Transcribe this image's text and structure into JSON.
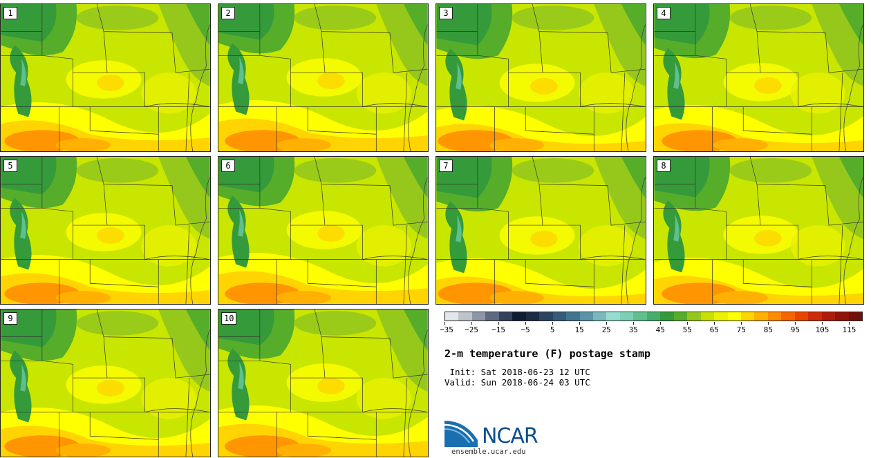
{
  "panels": [
    {
      "id": "1",
      "tone": "a"
    },
    {
      "id": "2",
      "tone": "b"
    },
    {
      "id": "3",
      "tone": "c"
    },
    {
      "id": "4",
      "tone": "d"
    },
    {
      "id": "5",
      "tone": "a"
    },
    {
      "id": "6",
      "tone": "b"
    },
    {
      "id": "7",
      "tone": "c"
    },
    {
      "id": "8",
      "tone": "d"
    },
    {
      "id": "9",
      "tone": "a"
    },
    {
      "id": "10",
      "tone": "b"
    }
  ],
  "legend": {
    "ticks": [
      "−35",
      "−25",
      "−15",
      "−5",
      "5",
      "15",
      "25",
      "35",
      "45",
      "55",
      "65",
      "75",
      "85",
      "95",
      "105",
      "115"
    ],
    "colors": [
      "#e3e6ea",
      "#bfc4cc",
      "#8f97a6",
      "#5f6a80",
      "#33405a",
      "#101c33",
      "#1a2c44",
      "#2a4460",
      "#345b78",
      "#3f7590",
      "#5a94a8",
      "#7ab8bc",
      "#95dcd0",
      "#7ed0b4",
      "#5fbf8e",
      "#46ad6a",
      "#359a3a",
      "#55ad2a",
      "#96c81c",
      "#c7e000",
      "#e9f200",
      "#ffff00",
      "#ffd400",
      "#ffb000",
      "#ff8a00",
      "#f86400",
      "#e84400",
      "#cc2a08",
      "#b01a0c",
      "#901208",
      "#701008"
    ]
  },
  "title": "2-m temperature (F) postage stamp",
  "init": " Init: Sat 2018-06-23 12 UTC",
  "valid": "Valid: Sun 2018-06-24 03 UTC",
  "logo_text": "NCAR",
  "site": "ensemble.ucar.edu"
}
